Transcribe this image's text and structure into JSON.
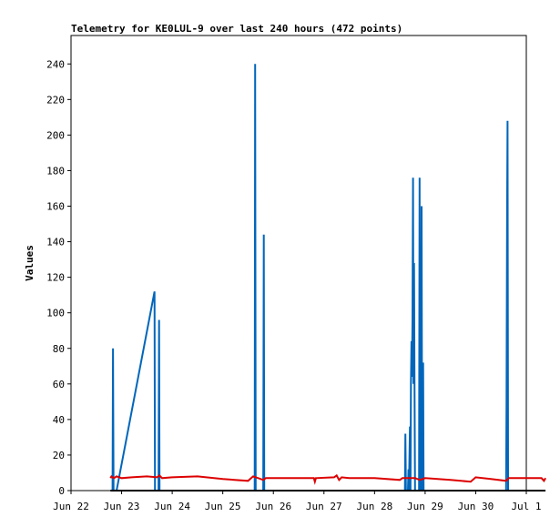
{
  "chart_data": {
    "type": "line",
    "title": "Telemetry for KE0LUL-9 over last 240 hours (472 points)",
    "xlabel": "",
    "ylabel": "Values",
    "x_ticks": [
      "Jun 22",
      "Jun 23",
      "Jun 24",
      "Jun 25",
      "Jun 26",
      "Jun 27",
      "Jun 28",
      "Jun 29",
      "Jun 30",
      "Jul 1"
    ],
    "y_ticks": [
      0,
      20,
      40,
      60,
      80,
      100,
      120,
      140,
      160,
      180,
      200,
      220,
      240
    ],
    "xlim": [
      0,
      9
    ],
    "ylim": [
      0,
      256
    ],
    "grid": false,
    "legend": "none",
    "series": [
      {
        "color": "#0066bb",
        "points": [
          [
            0.82,
            0
          ],
          [
            0.83,
            80
          ],
          [
            0.84,
            0
          ],
          [
            0.9,
            0
          ],
          [
            1.65,
            112
          ],
          [
            1.66,
            0
          ],
          [
            1.73,
            0
          ],
          [
            1.74,
            96
          ],
          [
            1.75,
            0
          ],
          [
            3.63,
            0
          ],
          [
            3.64,
            240
          ],
          [
            3.65,
            0
          ],
          [
            3.8,
            0
          ],
          [
            3.81,
            144
          ],
          [
            3.82,
            0
          ],
          [
            6.6,
            0
          ],
          [
            6.61,
            32
          ],
          [
            6.62,
            0
          ],
          [
            6.66,
            0
          ],
          [
            6.67,
            12
          ],
          [
            6.68,
            0
          ],
          [
            6.7,
            36
          ],
          [
            6.71,
            0
          ],
          [
            6.72,
            60
          ],
          [
            6.73,
            84
          ],
          [
            6.74,
            64
          ],
          [
            6.75,
            96
          ],
          [
            6.76,
            176
          ],
          [
            6.77,
            60
          ],
          [
            6.78,
            128
          ],
          [
            6.79,
            64
          ],
          [
            6.8,
            0
          ],
          [
            6.88,
            0
          ],
          [
            6.89,
            176
          ],
          [
            6.9,
            0
          ],
          [
            6.92,
            0
          ],
          [
            6.93,
            160
          ],
          [
            6.94,
            0
          ],
          [
            6.95,
            0
          ],
          [
            6.96,
            72
          ],
          [
            6.97,
            0
          ],
          [
            8.6,
            0
          ],
          [
            8.61,
            52
          ],
          [
            8.62,
            156
          ],
          [
            8.63,
            208
          ],
          [
            8.64,
            0
          ]
        ]
      },
      {
        "color": "#dd0000",
        "points": [
          [
            0.78,
            7
          ],
          [
            0.8,
            8
          ],
          [
            0.85,
            7
          ],
          [
            0.9,
            8
          ],
          [
            1.0,
            7
          ],
          [
            1.2,
            7.5
          ],
          [
            1.5,
            8
          ],
          [
            1.7,
            7.5
          ],
          [
            1.75,
            8.5
          ],
          [
            1.8,
            7
          ],
          [
            2.0,
            7.5
          ],
          [
            2.5,
            8
          ],
          [
            3.0,
            6.5
          ],
          [
            3.5,
            5.5
          ],
          [
            3.6,
            8
          ],
          [
            3.7,
            7
          ],
          [
            3.8,
            6
          ],
          [
            3.85,
            7
          ],
          [
            4.5,
            7
          ],
          [
            4.8,
            7
          ],
          [
            4.82,
            5
          ],
          [
            4.84,
            7
          ],
          [
            5.2,
            7.5
          ],
          [
            5.25,
            8.5
          ],
          [
            5.3,
            6
          ],
          [
            5.35,
            7.5
          ],
          [
            5.5,
            7
          ],
          [
            6.0,
            7
          ],
          [
            6.5,
            6
          ],
          [
            6.55,
            7
          ],
          [
            6.8,
            7
          ],
          [
            6.9,
            6
          ],
          [
            7.0,
            7
          ],
          [
            7.5,
            6
          ],
          [
            7.9,
            5
          ],
          [
            8.0,
            7.5
          ],
          [
            8.3,
            6.5
          ],
          [
            8.6,
            5.5
          ],
          [
            8.65,
            7
          ],
          [
            9.3,
            7
          ],
          [
            9.35,
            5.5
          ],
          [
            9.38,
            7
          ]
        ]
      },
      {
        "color": "#000000",
        "points": [
          [
            0.78,
            0
          ],
          [
            9.38,
            0
          ]
        ]
      }
    ]
  }
}
